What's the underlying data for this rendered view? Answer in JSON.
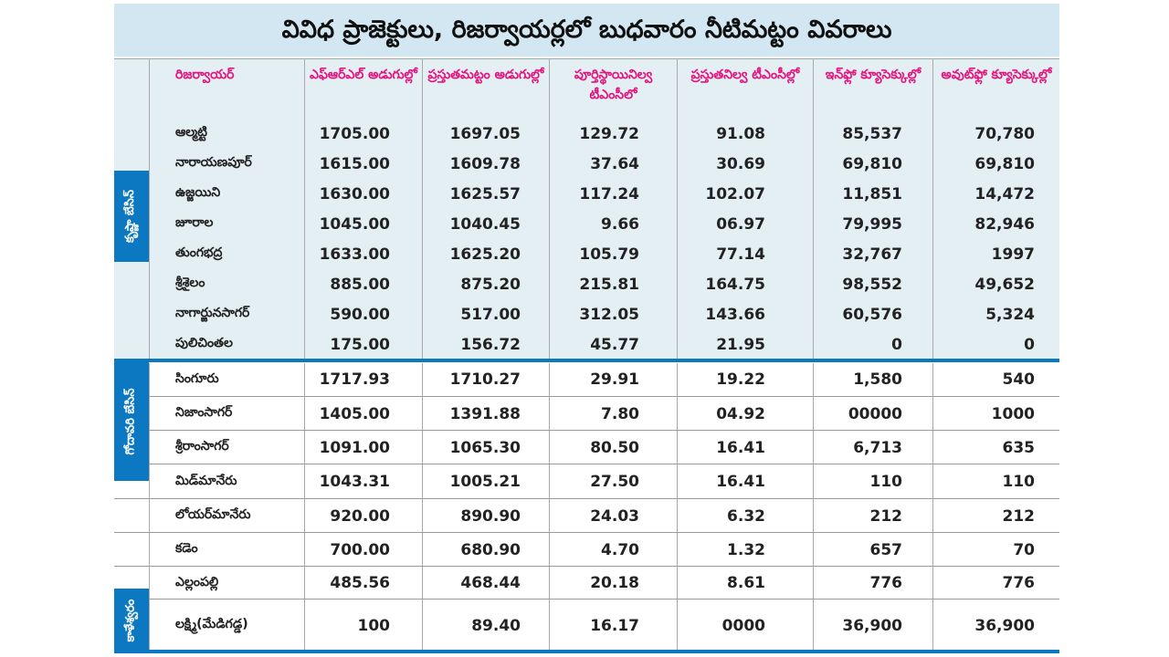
{
  "title": "వివిధ ప్రాజెక్టులు, రిజర్వాయర్లలో బుధవారం నీటిమట్టం వివరాలు",
  "headers": [
    "రిజర్వాయర్",
    "ఎఫ్‌ఆర్‌ఎల్ అడుగుల్లో",
    "ప్రస్తుతమట్టం అడుగుల్లో",
    "పూర్తిస్థాయినిల్వ టీఎంసీలో",
    "ప్రస్తుతనిల్వ టీఎంసీల్లో",
    "ఇన్‌ఫ్లో క్యూసెక్కుల్లో",
    "అవుట్‌ఫ్లో క్యూసెక్కుల్లో"
  ],
  "groups": [
    {
      "label": "కృష్ణా బేసిన్",
      "rows": [
        [
          "ఆల్మట్టి",
          "1705.00",
          "1697.05",
          "129.72",
          "91.08",
          "85,537",
          "70,780"
        ],
        [
          "నారాయణపూర్",
          "1615.00",
          "1609.78",
          "37.64",
          "30.69",
          "69,810",
          "69,810"
        ],
        [
          "ఉజ్జయిని",
          "1630.00",
          "1625.57",
          "117.24",
          "102.07",
          "11,851",
          "14,472"
        ],
        [
          "జూరాల",
          "1045.00",
          "1040.45",
          "9.66",
          "06.97",
          "79,995",
          "82,946"
        ],
        [
          "తుంగభద్ర",
          "1633.00",
          "1625.20",
          "105.79",
          "77.14",
          "32,767",
          "1997"
        ],
        [
          "శ్రీశైలం",
          "885.00",
          "875.20",
          "215.81",
          "164.75",
          "98,552",
          "49,652"
        ],
        [
          "నాగార్జునసాగర్",
          "590.00",
          "517.00",
          "312.05",
          "143.66",
          "60,576",
          "5,324"
        ],
        [
          "పులిచింతల",
          "175.00",
          "156.72",
          "45.77",
          "21.95",
          "0",
          "0"
        ]
      ]
    },
    {
      "label": "గోదావరి బేసిన్",
      "rows": [
        [
          "సింగూరు",
          "1717.93",
          "1710.27",
          "29.91",
          "19.22",
          "1,580",
          "540"
        ],
        [
          "నిజాంసాగర్",
          "1405.00",
          "1391.88",
          "7.80",
          "04.92",
          "00000",
          "1000"
        ],
        [
          "శ్రీరాంసాగర్",
          "1091.00",
          "1065.30",
          "80.50",
          "16.41",
          "6,713",
          "635"
        ],
        [
          "మిడ్‌మానేరు",
          "1043.31",
          "1005.21",
          "27.50",
          "16.41",
          "110",
          "110"
        ],
        [
          "లోయర్‌మానేరు",
          "920.00",
          "890.90",
          "24.03",
          "6.32",
          "212",
          "212"
        ],
        [
          "కడెం",
          "700.00",
          "680.90",
          "4.70",
          "1.32",
          "657",
          "70"
        ],
        [
          "ఎల్లంపల్లి",
          "485.56",
          "468.44",
          "20.18",
          "8.61",
          "776",
          "776"
        ]
      ]
    },
    {
      "label": "కాళేశ్వరం",
      "rows": [
        [
          "లక్ష్మి(మేడిగడ్డ)",
          "100",
          "89.40",
          "16.17",
          "0000",
          "36,900",
          "36,900"
        ]
      ]
    }
  ],
  "colors": {
    "header_text": "#e2157f",
    "accent": "#0d78c2",
    "title_bg": "#d3e7f3",
    "krishna_bg": "#e4eff4"
  }
}
